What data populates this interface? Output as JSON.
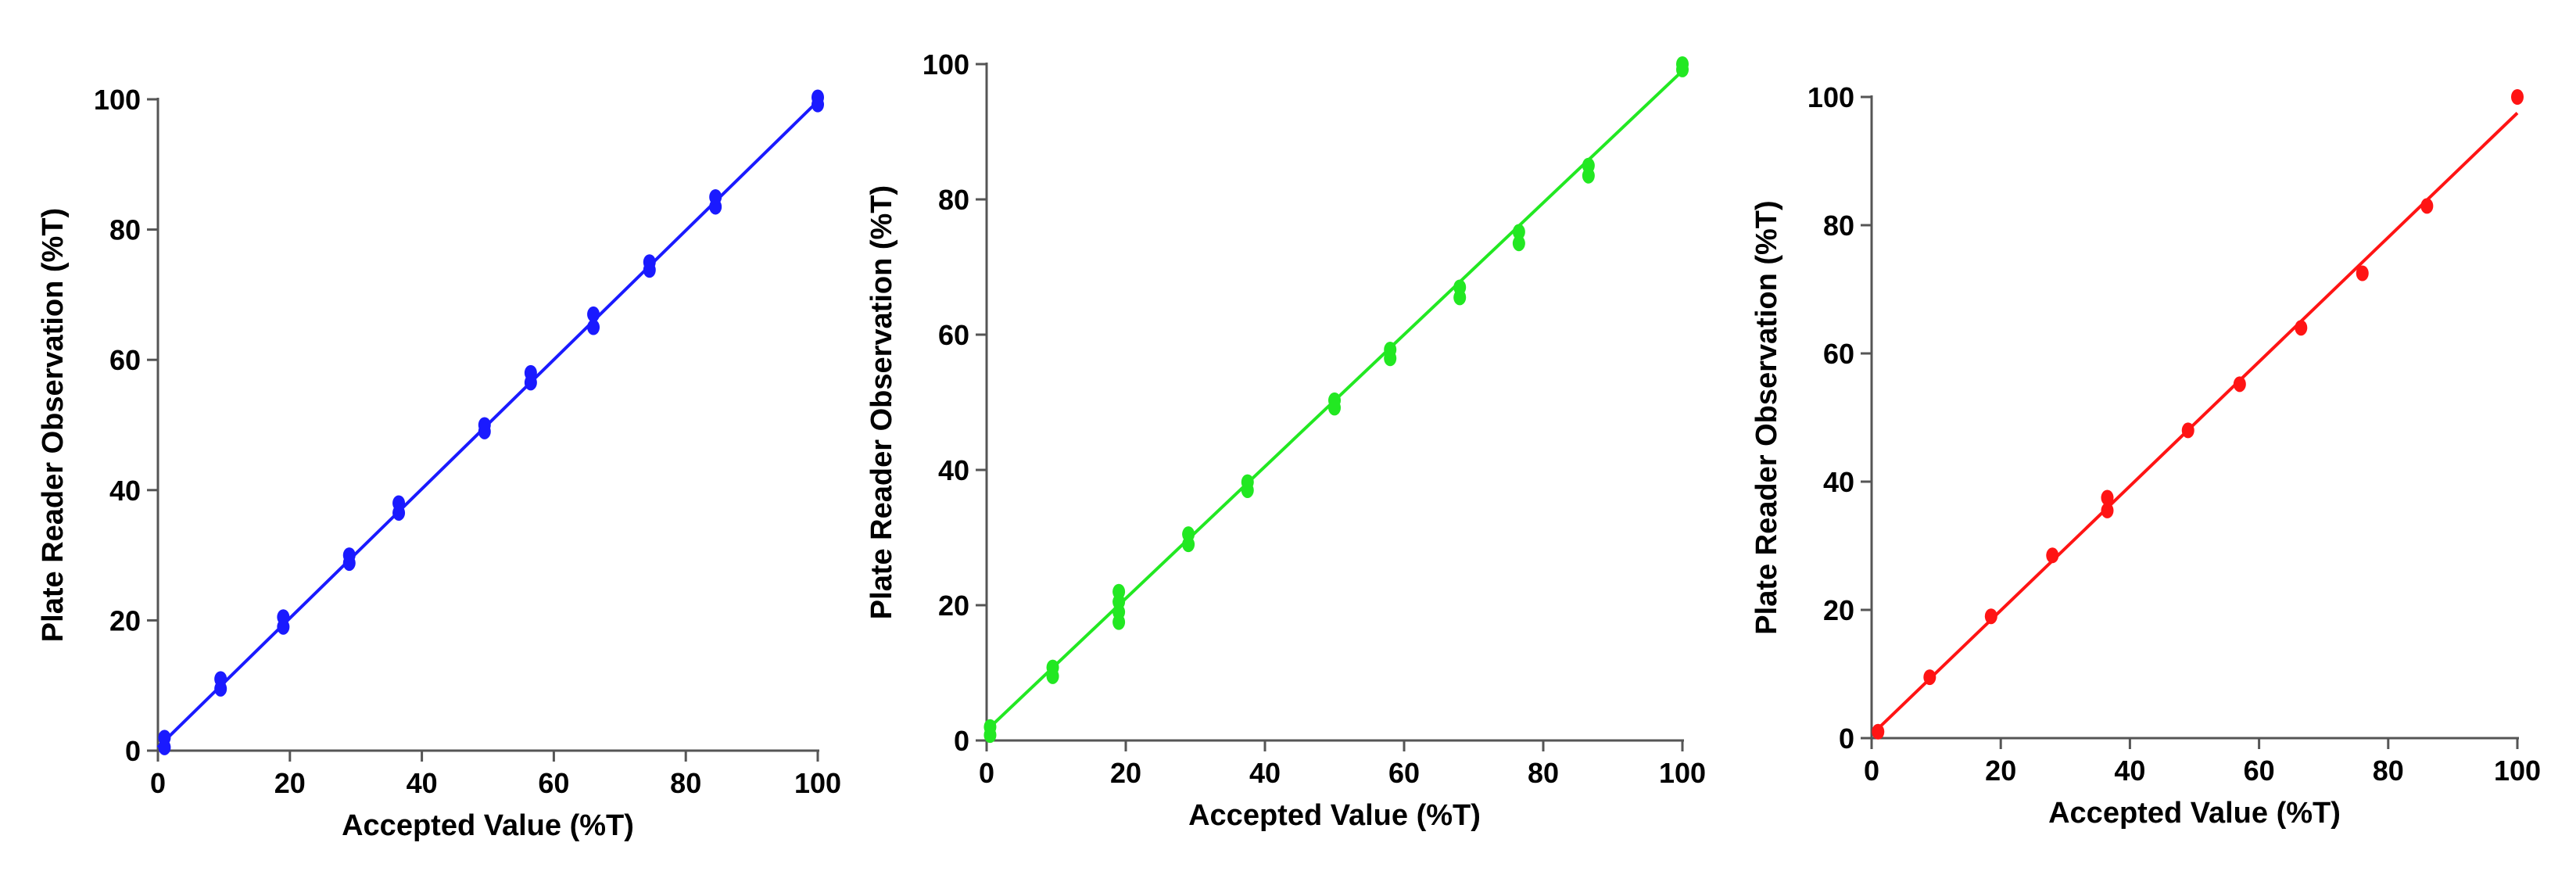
{
  "chart_data": [
    {
      "type": "scatter",
      "xlabel": "Accepted Value (%T)",
      "ylabel": "Plate Reader Observation (%T)",
      "xlim": [
        0,
        100
      ],
      "ylim": [
        0,
        100
      ],
      "xticks": [
        0,
        20,
        40,
        60,
        80,
        100
      ],
      "yticks": [
        0,
        20,
        40,
        60,
        80,
        100
      ],
      "grid": false,
      "color": "#1a1aff",
      "fit_line": [
        [
          0,
          0.5
        ],
        [
          100,
          99.7
        ]
      ],
      "series": [
        {
          "points": [
            [
              1,
              0.5
            ],
            [
              1,
              2
            ],
            [
              9.5,
              9.5
            ],
            [
              9.5,
              11
            ],
            [
              19,
              19
            ],
            [
              19,
              20.5
            ],
            [
              29,
              28.8
            ],
            [
              29,
              30
            ],
            [
              36.5,
              36.5
            ],
            [
              36.5,
              38
            ],
            [
              49.5,
              49
            ],
            [
              49.5,
              50
            ],
            [
              56.5,
              56.5
            ],
            [
              56.5,
              58
            ],
            [
              66,
              65
            ],
            [
              66,
              67
            ],
            [
              74.5,
              73.8
            ],
            [
              74.5,
              75
            ],
            [
              84.5,
              83.5
            ],
            [
              84.5,
              85
            ],
            [
              100,
              99.2
            ],
            [
              100,
              100.3
            ]
          ]
        }
      ]
    },
    {
      "type": "scatter",
      "xlabel": "Accepted Value (%T)",
      "ylabel": "Plate Reader Observation (%T)",
      "xlim": [
        0,
        100
      ],
      "ylim": [
        0,
        100
      ],
      "xticks": [
        0,
        20,
        40,
        60,
        80,
        100
      ],
      "yticks": [
        0,
        20,
        40,
        60,
        80,
        100
      ],
      "grid": false,
      "color": "#22e822",
      "fit_line": [
        [
          0,
          1.5
        ],
        [
          100,
          99
        ]
      ],
      "series": [
        {
          "points": [
            [
              0.5,
              0.8
            ],
            [
              0.5,
              2
            ],
            [
              9.5,
              9.5
            ],
            [
              9.5,
              10.8
            ],
            [
              19,
              17.5
            ],
            [
              19,
              19
            ],
            [
              19,
              20.5
            ],
            [
              19,
              22
            ],
            [
              29,
              29
            ],
            [
              29,
              30.5
            ],
            [
              37.5,
              37
            ],
            [
              37.5,
              38.2
            ],
            [
              50,
              49.2
            ],
            [
              50,
              50.3
            ],
            [
              58,
              56.5
            ],
            [
              58,
              57.8
            ],
            [
              68,
              65.5
            ],
            [
              68,
              67
            ],
            [
              76.5,
              73.5
            ],
            [
              76.5,
              75.2
            ],
            [
              86.5,
              83.5
            ],
            [
              86.5,
              85
            ],
            [
              100,
              99.2
            ],
            [
              100,
              100
            ]
          ]
        }
      ]
    },
    {
      "type": "scatter",
      "xlabel": "Accepted Value (%T)",
      "ylabel": "Plate Reader Observation (%T)",
      "xlim": [
        0,
        100
      ],
      "ylim": [
        0,
        100
      ],
      "xticks": [
        0,
        20,
        40,
        60,
        80,
        100
      ],
      "yticks": [
        0,
        20,
        40,
        60,
        80,
        100
      ],
      "grid": false,
      "color": "#ff1414",
      "fit_line": [
        [
          0.5,
          1
        ],
        [
          100,
          97.5
        ]
      ],
      "series": [
        {
          "points": [
            [
              1,
              1
            ],
            [
              9,
              9.5
            ],
            [
              18.5,
              19
            ],
            [
              28,
              28.5
            ],
            [
              36.5,
              35.5
            ],
            [
              36.5,
              37.5
            ],
            [
              49,
              48
            ],
            [
              57,
              55.2
            ],
            [
              66.5,
              64
            ],
            [
              76,
              72.5
            ],
            [
              86,
              83
            ],
            [
              100,
              100
            ]
          ]
        }
      ]
    }
  ]
}
